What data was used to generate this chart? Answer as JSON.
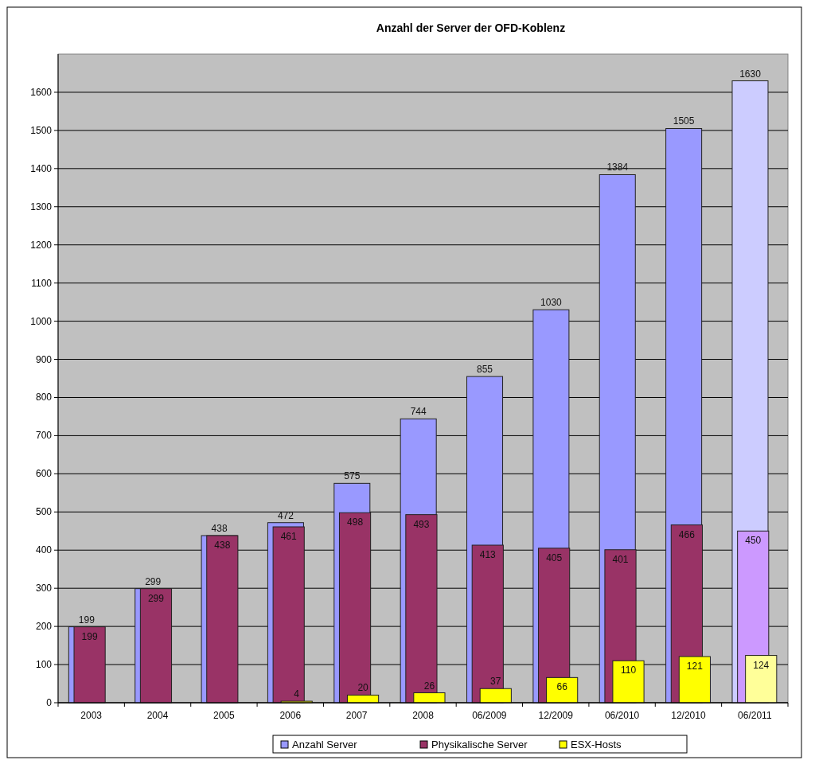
{
  "chart_data": {
    "type": "bar",
    "title": "Anzahl der Server der OFD-Koblenz",
    "categories": [
      "2003",
      "2004",
      "2005",
      "2006",
      "2007",
      "2008",
      "06/2009",
      "12/2009",
      "06/2010",
      "12/2010",
      "06/2011"
    ],
    "series": [
      {
        "name": "Anzahl Server",
        "color": "#9999ff",
        "colors": [
          "#9999ff",
          "#9999ff",
          "#9999ff",
          "#9999ff",
          "#9999ff",
          "#9999ff",
          "#9999ff",
          "#9999ff",
          "#9999ff",
          "#9999ff",
          "#ccccff"
        ],
        "values": [
          199,
          299,
          438,
          472,
          575,
          744,
          855,
          1030,
          1384,
          1505,
          1630
        ]
      },
      {
        "name": "Physikalische Server",
        "color": "#993366",
        "colors": [
          "#993366",
          "#993366",
          "#993366",
          "#993366",
          "#993366",
          "#993366",
          "#993366",
          "#993366",
          "#993366",
          "#993366",
          "#cc99ff"
        ],
        "values": [
          199,
          299,
          438,
          461,
          498,
          493,
          413,
          405,
          401,
          466,
          450
        ]
      },
      {
        "name": "ESX-Hosts",
        "color": "#ffff00",
        "colors": [
          null,
          null,
          null,
          "#ffff00",
          "#ffff00",
          "#ffff00",
          "#ffff00",
          "#ffff00",
          "#ffff00",
          "#ffff00",
          "#ffff99"
        ],
        "values": [
          null,
          null,
          null,
          4,
          20,
          26,
          37,
          66,
          110,
          121,
          124
        ]
      }
    ],
    "ylim": [
      0,
      1700
    ],
    "yticks": [
      0,
      100,
      200,
      300,
      400,
      500,
      600,
      700,
      800,
      900,
      1000,
      1100,
      1200,
      1300,
      1400,
      1500,
      1600
    ],
    "grid": "y",
    "legend": "bottom",
    "data_labels": true
  }
}
